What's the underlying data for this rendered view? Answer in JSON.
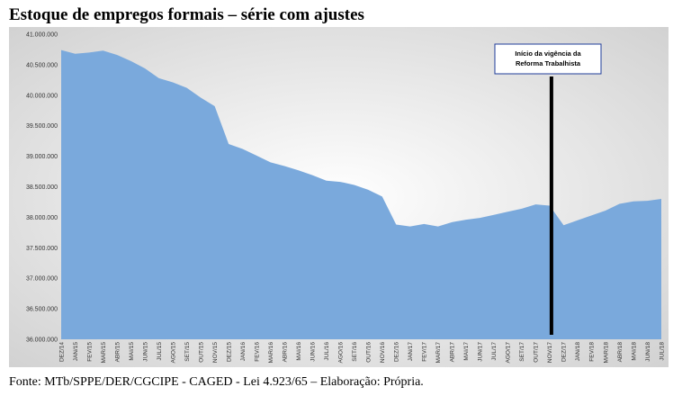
{
  "title": "Estoque de empregos formais – série com ajustes",
  "source": "Fonte: MTb/SPPE/DER/CGCIPE - CAGED - Lei 4.923/65 – Elaboração: Própria.",
  "colors": {
    "area": "#7aa9dc",
    "plot_bg_center": "#ffffff",
    "plot_bg_edge": "#cfcfcf",
    "marker": "#000000",
    "annotation_border": "#1f3c9a"
  },
  "chart_data": {
    "type": "area",
    "title": "Estoque de empregos formais – série com ajustes",
    "categories": [
      "DEZ/14",
      "JAN/15",
      "FEV/15",
      "MAR/15",
      "ABR/15",
      "MAI/15",
      "JUN/15",
      "JUL/15",
      "AGO/15",
      "SET/15",
      "OUT/15",
      "NOV/15",
      "DEZ/15",
      "JAN/16",
      "FEV/16",
      "MAR/16",
      "ABR/16",
      "MAI/16",
      "JUN/16",
      "JUL/16",
      "AGO/16",
      "SET/16",
      "OUT/16",
      "NOV/16",
      "DEZ/16",
      "JAN/17",
      "FEV/17",
      "MAR/17",
      "ABR/17",
      "MAI/17",
      "JUN/17",
      "JUL/17",
      "AGO/17",
      "SET/17",
      "OUT/17",
      "NOV/17",
      "DEZ/17",
      "JAN/18",
      "FEV/18",
      "MAR/18",
      "ABR/18",
      "MAI/18",
      "JUN/18",
      "JUL/18"
    ],
    "values": [
      40740000,
      40680000,
      40700000,
      40730000,
      40660000,
      40560000,
      40440000,
      40280000,
      40210000,
      40120000,
      39960000,
      39820000,
      39200000,
      39120000,
      39010000,
      38900000,
      38840000,
      38770000,
      38690000,
      38600000,
      38580000,
      38530000,
      38450000,
      38340000,
      37880000,
      37850000,
      37890000,
      37850000,
      37920000,
      37960000,
      37990000,
      38040000,
      38090000,
      38140000,
      38210000,
      38190000,
      37870000,
      37950000,
      38030000,
      38110000,
      38220000,
      38260000,
      38270000,
      38300000
    ],
    "ylim": [
      36000000,
      41000000
    ],
    "yticks": [
      "36.000.000",
      "36.500.000",
      "37.000.000",
      "37.500.000",
      "38.000.000",
      "38.500.000",
      "39.000.000",
      "39.500.000",
      "40.000.000",
      "40.500.000",
      "41.000.000"
    ],
    "ytick_values": [
      36000000,
      36500000,
      37000000,
      37500000,
      38000000,
      38500000,
      39000000,
      39500000,
      40000000,
      40500000,
      41000000
    ],
    "marker_at": "NOV/17",
    "annotation": [
      "Início da vigência da",
      "Reforma Trabalhista"
    ],
    "legend": "none",
    "grid": false
  }
}
